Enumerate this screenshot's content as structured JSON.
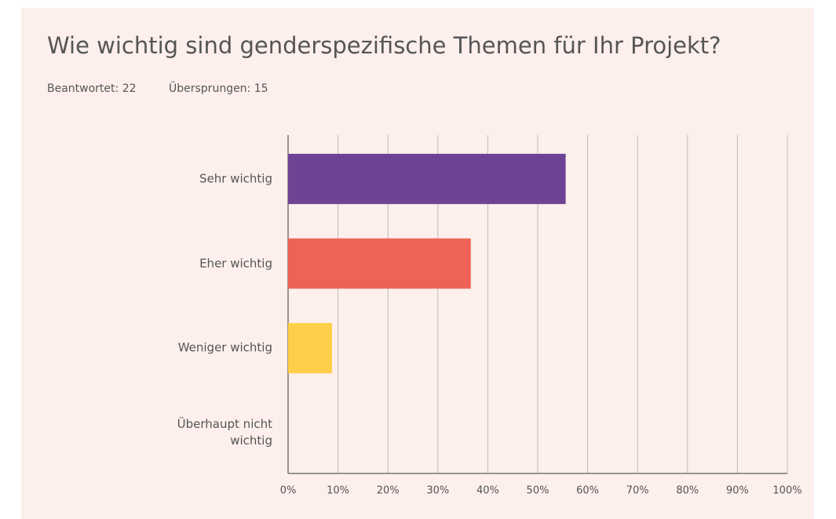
{
  "chart_data": {
    "type": "barh",
    "title": "Wie wichtig sind genderspezifische Themen für Ihr Projekt?",
    "answered": "Beantwortet: 22",
    "skipped": "Übersprungen: 15",
    "categories": [
      "Sehr wichtig",
      "Eher wichtig",
      "Weniger wichtig",
      "Überhaupt nicht wichtig"
    ],
    "values": [
      55.6,
      36.6,
      8.8,
      0
    ],
    "colors": [
      "#6f4394",
      "#ee6357",
      "#fecf48",
      "#8ec3a7"
    ],
    "xlim": [
      0,
      100
    ],
    "xticks": [
      {
        "value": 0,
        "label": "0%"
      },
      {
        "value": 10,
        "label": "10%"
      },
      {
        "value": 20,
        "label": "20%"
      },
      {
        "value": 30,
        "label": "30%"
      },
      {
        "value": 40,
        "label": "40%"
      },
      {
        "value": 50,
        "label": "50%"
      },
      {
        "value": 60,
        "label": "60%"
      },
      {
        "value": 70,
        "label": "70%"
      },
      {
        "value": 80,
        "label": "80%"
      },
      {
        "value": 90,
        "label": "90%"
      },
      {
        "value": 100,
        "label": "100%"
      }
    ],
    "grid": true
  }
}
